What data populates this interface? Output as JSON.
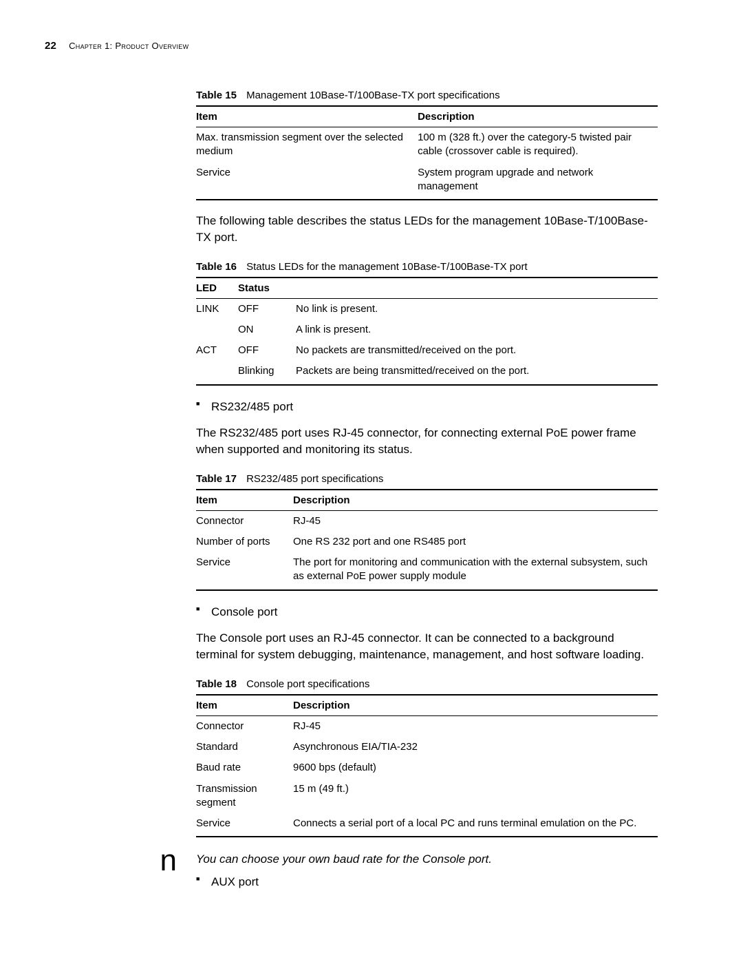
{
  "page": {
    "number": "22",
    "chapter": "Chapter 1: Product Overview"
  },
  "table15": {
    "label": "Table 15",
    "caption": "Management 10Base-T/100Base-TX port specifications",
    "columns": [
      "Item",
      "Description"
    ],
    "col_widths": [
      "48%",
      "52%"
    ],
    "rows": [
      [
        "Max. transmission segment over the selected medium",
        "100 m (328 ft.) over the category-5 twisted pair cable (crossover cable is required)."
      ],
      [
        "Service",
        "System program upgrade and network management"
      ]
    ]
  },
  "para1": "The following table describes the status LEDs for the management 10Base-T/100Base-TX port.",
  "table16": {
    "label": "Table 16",
    "caption": "Status LEDs for the management 10Base-T/100Base-TX port",
    "columns": [
      "LED",
      "Status",
      ""
    ],
    "rows": [
      [
        "LINK",
        "OFF",
        "No link is present."
      ],
      [
        "",
        "ON",
        "A link is present."
      ],
      [
        "ACT",
        "OFF",
        "No packets are transmitted/received on the port."
      ],
      [
        "",
        "Blinking",
        "Packets are being transmitted/received on the port."
      ]
    ]
  },
  "bullet_rs": "RS232/485 port",
  "para2": "The RS232/485 port uses RJ-45 connector, for connecting external PoE power frame when supported and monitoring its status.",
  "table17": {
    "label": "Table 17",
    "caption": "RS232/485 port specifications",
    "columns": [
      "Item",
      "Description"
    ],
    "rows": [
      [
        "Connector",
        "RJ-45"
      ],
      [
        "Number of ports",
        "One RS 232 port and one RS485 port"
      ],
      [
        "Service",
        "The port for monitoring and communication with the external subsystem, such as external PoE power supply module"
      ]
    ]
  },
  "bullet_console": "Console port",
  "para3": "The Console port uses an RJ-45 connector. It can be connected to a background terminal for system debugging, maintenance, management, and host software loading.",
  "table18": {
    "label": "Table 18",
    "caption": "Console port specifications",
    "columns": [
      "Item",
      "Description"
    ],
    "rows": [
      [
        "Connector",
        "RJ-45"
      ],
      [
        "Standard",
        "Asynchronous EIA/TIA-232"
      ],
      [
        "Baud rate",
        "9600 bps (default)"
      ],
      [
        "Transmission segment",
        "15 m (49 ft.)"
      ],
      [
        "Service",
        "Connects a serial port of a local PC and runs terminal emulation on the PC."
      ]
    ]
  },
  "note_icon": "n",
  "note_text": "You can choose your own baud rate for the Console port.",
  "bullet_aux": "AUX port",
  "style": {
    "page_bg": "#ffffff",
    "text_color": "#000000",
    "border_color": "#000000",
    "body_fontsize_pt": 12.5,
    "caption_fontsize_pt": 11,
    "table_fontsize_pt": 11
  }
}
